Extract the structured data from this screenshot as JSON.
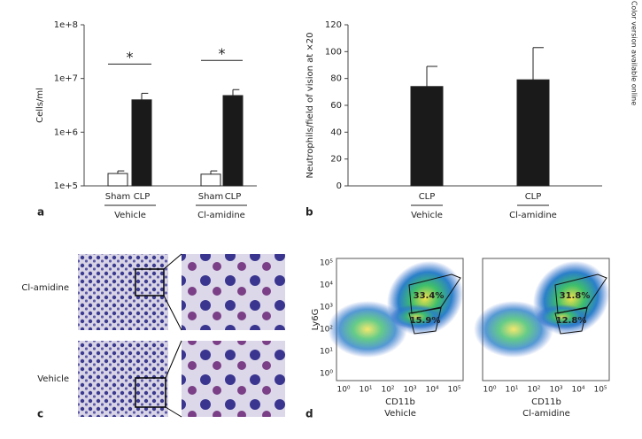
{
  "side_note": "Color version available online",
  "panel_labels": [
    "a",
    "b",
    "c",
    "d"
  ],
  "chart_data": [
    {
      "type": "bar",
      "log_scale": true,
      "y_label": "Cells/ml",
      "categories": [
        "Sham",
        "CLP",
        "Sham",
        "CLP"
      ],
      "groups": [
        "Vehicle",
        "Cl-amidine"
      ],
      "values": [
        170000,
        4000000,
        165000,
        4800000
      ],
      "errors": [
        20000,
        1300000,
        25000,
        1400000
      ],
      "colors": [
        "#ffffff",
        "#1a1a1a",
        "#ffffff",
        "#1a1a1a"
      ],
      "annotations": [
        "*",
        "*"
      ],
      "ylim": [
        100000,
        100000000
      ],
      "yticks": [
        {
          "value": 100000,
          "label": "1e+5"
        },
        {
          "value": 1000000,
          "label": "1e+6"
        },
        {
          "value": 10000000,
          "label": "1e+7"
        },
        {
          "value": 100000000,
          "label": "1e+8"
        }
      ]
    },
    {
      "type": "bar",
      "y_label": "Neutrophils/field of vision at ×20",
      "categories": [
        "CLP",
        "CLP"
      ],
      "groups": [
        "Vehicle",
        "Cl-amidine"
      ],
      "values": [
        74,
        79
      ],
      "errors": [
        15,
        24
      ],
      "colors": [
        "#1a1a1a",
        "#1a1a1a"
      ],
      "ylim": [
        0,
        120
      ],
      "yticks": [
        0,
        20,
        40,
        60,
        80,
        100,
        120
      ]
    }
  ],
  "micrographs": {
    "rows": [
      "Cl-amidine",
      "Vehicle"
    ]
  },
  "flow": {
    "y_label": "Ly6G",
    "x_label": "CD11b",
    "ticks": [
      "10⁰",
      "10¹",
      "10²",
      "10³",
      "10⁴",
      "10⁵"
    ],
    "plots": [
      {
        "condition": "Vehicle",
        "gates": [
          "33.4%",
          "15.9%"
        ]
      },
      {
        "condition": "Cl-amidine",
        "gates": [
          "31.8%",
          "12.8%"
        ]
      }
    ]
  }
}
